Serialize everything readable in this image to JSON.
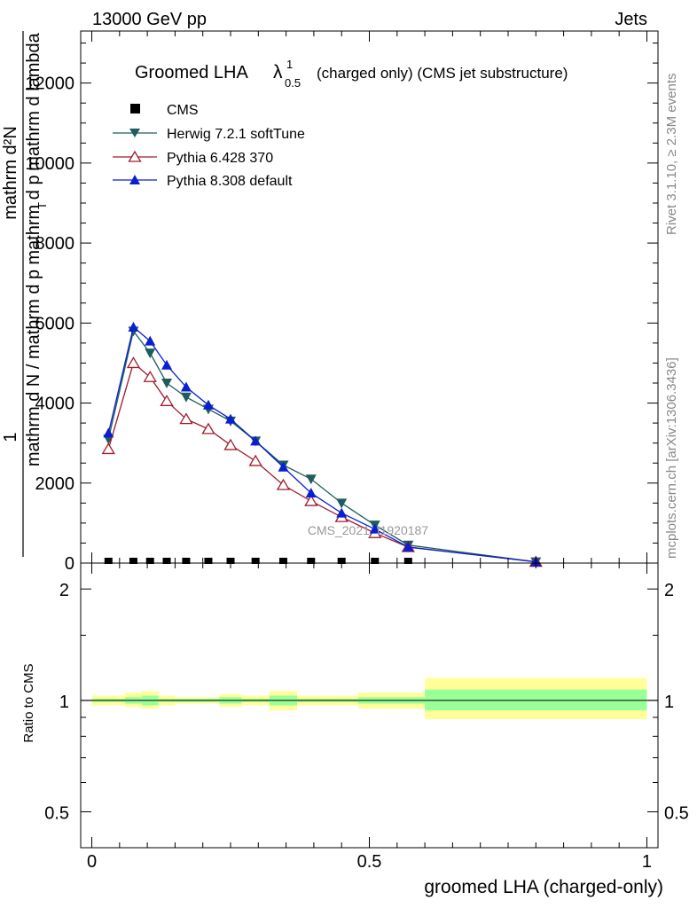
{
  "header": {
    "energy": "13000 GeV pp",
    "tag": "Jets",
    "title_main": "Groomed LHA",
    "title_lambda": "λ",
    "title_sup": "1",
    "title_sub": "0.5",
    "title_rest": "(charged only) (CMS jet substructure)",
    "watermark": "CMS_2021_I1920187"
  },
  "side_text": {
    "rivet": "Rivet 3.1.10, ≥ 2.3M events",
    "mcplots": "mcplots.cern.ch [arXiv:1306.3436]"
  },
  "ylabel": {
    "outer_num_a": "1",
    "outer_den": "mathrm d N / mathrm d p",
    "numerator": "mathrm d²N",
    "denominator": "mathrm d p",
    "denominator_sub": "T",
    "denominator_rest": "mathrm d lambda"
  },
  "ratio_ylabel": "Ratio to CMS",
  "xlabel": "groomed LHA (charged-only)",
  "colors": {
    "cms": "#000000",
    "herwig": "#1f5c5c",
    "pythia6": "#a01b2e",
    "pythia8": "#0a1fd0",
    "band_outer": "#ffff99",
    "band_inner": "#99ff99"
  },
  "chart_data": [
    {
      "type": "line",
      "title": "Groomed LHA λ¹₀.₅ (charged only) (CMS jet substructure)",
      "xlim": [
        -0.02,
        1.02
      ],
      "ylim": [
        0,
        13300
      ],
      "yticks": [
        0,
        2000,
        4000,
        6000,
        8000,
        10000,
        12000
      ],
      "ytick_labels": [
        "0",
        "2000",
        "4000",
        "6000",
        "8000",
        "10000",
        "12000"
      ],
      "legend_position": "top-left",
      "series": [
        {
          "name": "CMS",
          "marker": "square",
          "x": [
            0.03,
            0.075,
            0.105,
            0.135,
            0.17,
            0.21,
            0.25,
            0.295,
            0.345,
            0.395,
            0.45,
            0.51,
            0.57
          ],
          "y": [
            0,
            0,
            0,
            0,
            0,
            0,
            0,
            0,
            0,
            0,
            0,
            0,
            0
          ]
        },
        {
          "name": "Herwig 7.2.1 softTune",
          "marker": "triangle-down",
          "x": [
            0.03,
            0.075,
            0.105,
            0.135,
            0.17,
            0.21,
            0.25,
            0.295,
            0.345,
            0.395,
            0.45,
            0.51,
            0.57,
            0.8
          ],
          "y": [
            3100,
            5800,
            5250,
            4500,
            4150,
            3850,
            3550,
            3050,
            2450,
            2100,
            1500,
            950,
            450,
            30
          ]
        },
        {
          "name": "Pythia 6.428 370",
          "marker": "triangle-open",
          "x": [
            0.03,
            0.075,
            0.105,
            0.135,
            0.17,
            0.21,
            0.25,
            0.295,
            0.345,
            0.395,
            0.45,
            0.51,
            0.57,
            0.8
          ],
          "y": [
            2850,
            5000,
            4650,
            4050,
            3600,
            3350,
            2950,
            2550,
            1950,
            1550,
            1150,
            750,
            400,
            30
          ]
        },
        {
          "name": "Pythia 8.308 default",
          "marker": "triangle-up",
          "x": [
            0.03,
            0.075,
            0.105,
            0.135,
            0.17,
            0.21,
            0.25,
            0.295,
            0.345,
            0.395,
            0.45,
            0.51,
            0.57,
            0.8
          ],
          "y": [
            3250,
            5900,
            5550,
            4950,
            4400,
            3950,
            3600,
            3050,
            2400,
            1750,
            1250,
            850,
            400,
            30
          ]
        }
      ]
    },
    {
      "type": "area",
      "ylabel": "Ratio to CMS",
      "xlabel": "groomed LHA (charged-only)",
      "xlim": [
        -0.02,
        1.02
      ],
      "ylim": [
        0.4,
        2.35
      ],
      "log_y": true,
      "yticks": [
        0.5,
        1,
        2
      ],
      "ytick_labels": [
        "0.5",
        "1",
        "2"
      ],
      "xticks": [
        0,
        0.5,
        1
      ],
      "xtick_labels": [
        "0",
        "0.5",
        "1"
      ],
      "bins": [
        {
          "x": [
            0.0,
            0.06
          ],
          "inner": [
            0.99,
            1.01
          ],
          "outer": [
            0.97,
            1.03
          ]
        },
        {
          "x": [
            0.06,
            0.09
          ],
          "inner": [
            0.98,
            1.02
          ],
          "outer": [
            0.96,
            1.05
          ]
        },
        {
          "x": [
            0.09,
            0.12
          ],
          "inner": [
            0.97,
            1.03
          ],
          "outer": [
            0.95,
            1.06
          ]
        },
        {
          "x": [
            0.12,
            0.15
          ],
          "inner": [
            0.99,
            1.01
          ],
          "outer": [
            0.97,
            1.03
          ]
        },
        {
          "x": [
            0.15,
            0.19
          ],
          "inner": [
            0.99,
            1.01
          ],
          "outer": [
            0.98,
            1.02
          ]
        },
        {
          "x": [
            0.19,
            0.23
          ],
          "inner": [
            0.99,
            1.01
          ],
          "outer": [
            0.98,
            1.02
          ]
        },
        {
          "x": [
            0.23,
            0.27
          ],
          "inner": [
            0.98,
            1.02
          ],
          "outer": [
            0.96,
            1.04
          ]
        },
        {
          "x": [
            0.27,
            0.32
          ],
          "inner": [
            0.99,
            1.01
          ],
          "outer": [
            0.97,
            1.03
          ]
        },
        {
          "x": [
            0.32,
            0.37
          ],
          "inner": [
            0.97,
            1.03
          ],
          "outer": [
            0.94,
            1.06
          ]
        },
        {
          "x": [
            0.37,
            0.42
          ],
          "inner": [
            0.99,
            1.01
          ],
          "outer": [
            0.97,
            1.03
          ]
        },
        {
          "x": [
            0.42,
            0.48
          ],
          "inner": [
            0.99,
            1.01
          ],
          "outer": [
            0.97,
            1.03
          ]
        },
        {
          "x": [
            0.48,
            0.54
          ],
          "inner": [
            0.98,
            1.02
          ],
          "outer": [
            0.95,
            1.05
          ]
        },
        {
          "x": [
            0.54,
            0.6
          ],
          "inner": [
            0.98,
            1.02
          ],
          "outer": [
            0.95,
            1.05
          ]
        },
        {
          "x": [
            0.6,
            1.0
          ],
          "inner": [
            0.94,
            1.07
          ],
          "outer": [
            0.89,
            1.15
          ]
        }
      ]
    }
  ]
}
